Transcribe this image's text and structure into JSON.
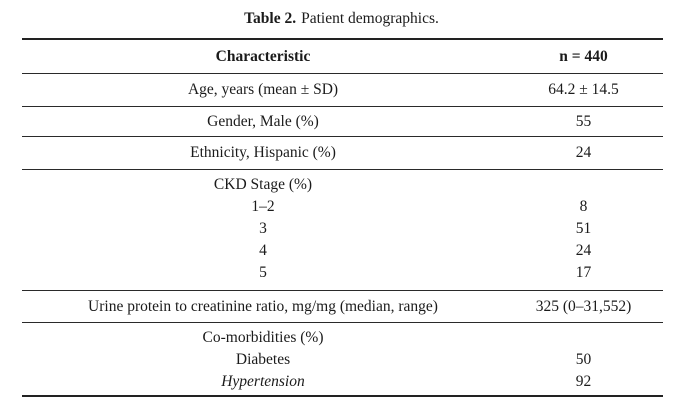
{
  "caption": {
    "label": "Table 2.",
    "text": "Patient demographics."
  },
  "table": {
    "header": {
      "characteristic": "Characteristic",
      "n": "n = 440"
    },
    "row_age": {
      "label": "Age, years (mean ± SD)",
      "value": "64.2 ± 14.5"
    },
    "row_gender": {
      "label": "Gender, Male (%)",
      "value": "55"
    },
    "row_ethnicity": {
      "label": "Ethnicity, Hispanic (%)",
      "value": "24"
    },
    "ckd": {
      "header": "CKD Stage (%)",
      "items": [
        {
          "label": "1–2",
          "value": "8"
        },
        {
          "label": "3",
          "value": "51"
        },
        {
          "label": "4",
          "value": "24"
        },
        {
          "label": "5",
          "value": "17"
        }
      ]
    },
    "row_urine": {
      "label": "Urine protein to creatinine ratio, mg/mg (median, range)",
      "value": "325 (0–31,552)"
    },
    "comorbidities": {
      "header": "Co-morbidities (%)",
      "items": [
        {
          "label": "Diabetes",
          "value": "50"
        },
        {
          "label": "Hypertension",
          "value": "92"
        }
      ]
    }
  }
}
